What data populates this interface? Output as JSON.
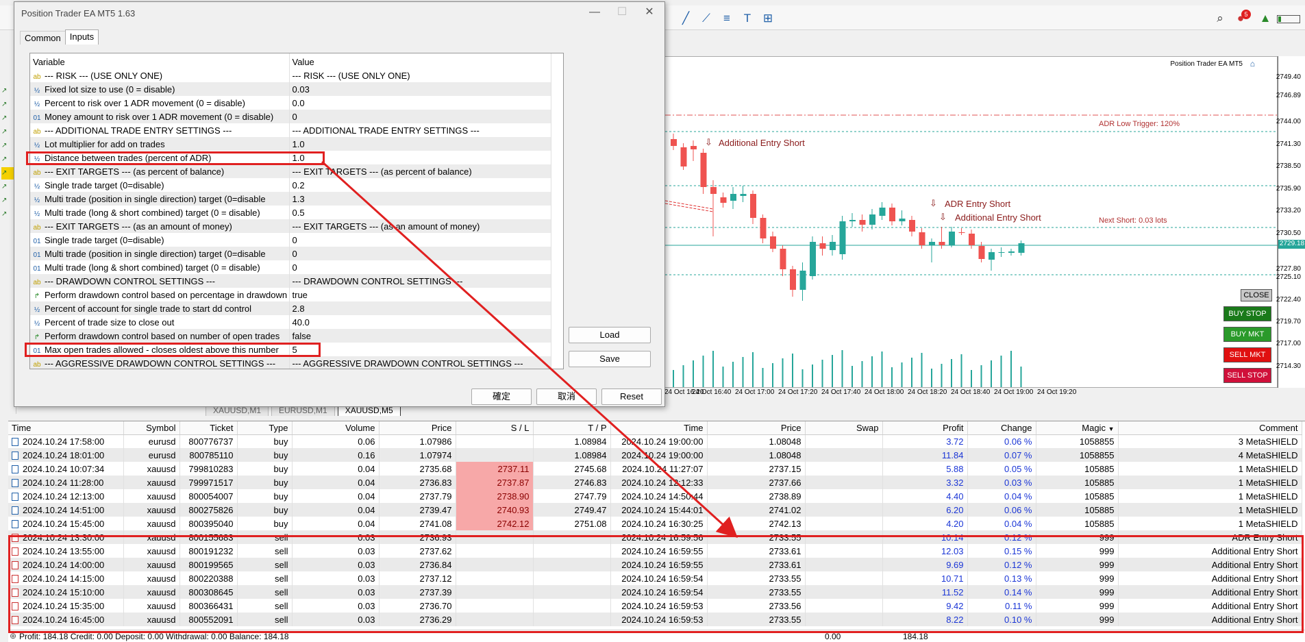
{
  "window": {
    "title": "Position Trader EA MT5 1.63"
  },
  "dialog_tabs": [
    {
      "label": "Common"
    },
    {
      "label": "Inputs"
    }
  ],
  "inputs_table": {
    "headers": {
      "variable": "Variable",
      "value": "Value"
    },
    "rows": [
      {
        "icon": "ab",
        "variable": "--- RISK --- (USE ONLY ONE)",
        "value": "--- RISK --- (USE ONLY ONE)"
      },
      {
        "icon": "½",
        "variable": "Fixed lot size to use (0 = disable)",
        "value": "0.03"
      },
      {
        "icon": "½",
        "variable": "Percent to risk over 1 ADR movement (0 = disable)",
        "value": "0.0"
      },
      {
        "icon": "01",
        "variable": "Money amount to risk over 1 ADR movement (0 = disable)",
        "value": "0"
      },
      {
        "icon": "ab",
        "variable": "--- ADDITIONAL TRADE ENTRY SETTINGS ---",
        "value": "--- ADDITIONAL TRADE ENTRY SETTINGS ---"
      },
      {
        "icon": "½",
        "variable": "Lot multiplier for add on trades",
        "value": "1.0"
      },
      {
        "icon": "½",
        "variable": "Distance between trades (percent of ADR)",
        "value": "1.0"
      },
      {
        "icon": "ab",
        "variable": "--- EXIT TARGETS --- (as percent of balance)",
        "value": "--- EXIT TARGETS --- (as percent of balance)"
      },
      {
        "icon": "½",
        "variable": "Single trade target (0=disable)",
        "value": "0.2"
      },
      {
        "icon": "½",
        "variable": "Multi trade (position in single direction) target (0=disable",
        "value": "1.3"
      },
      {
        "icon": "½",
        "variable": "Multi trade (long & short combined) target (0 = disable)",
        "value": "0.5"
      },
      {
        "icon": "ab",
        "variable": "--- EXIT TARGETS --- (as an amount of money)",
        "value": "--- EXIT TARGETS --- (as an amount of money)"
      },
      {
        "icon": "01",
        "variable": "Single trade target (0=disable)",
        "value": "0"
      },
      {
        "icon": "01",
        "variable": "Multi trade (position in single direction) target (0=disable",
        "value": "0"
      },
      {
        "icon": "01",
        "variable": "Multi trade (long & short combined) target (0 = disable)",
        "value": "0"
      },
      {
        "icon": "ab",
        "variable": "--- DRAWDOWN CONTROL SETTINGS ---",
        "value": "--- DRAWDOWN CONTROL SETTINGS ---"
      },
      {
        "icon": "↱",
        "variable": "Perform drawdown control based on percentage in drawdown",
        "value": "true"
      },
      {
        "icon": "½",
        "variable": "Percent of account for single trade to start dd control",
        "value": "2.8"
      },
      {
        "icon": "½",
        "variable": "Percent of trade size to close out",
        "value": "40.0"
      },
      {
        "icon": "↱",
        "variable": "Perform drawdown control based on number of open trades",
        "value": "false"
      },
      {
        "icon": "01",
        "variable": "Max open trades allowed - closes oldest above this number",
        "value": "5"
      },
      {
        "icon": "ab",
        "variable": "--- AGGRESSIVE DRAWDOWN CONTROL SETTINGS ---",
        "value": "--- AGGRESSIVE DRAWDOWN CONTROL SETTINGS ---"
      }
    ]
  },
  "dialog_buttons": {
    "load": "Load",
    "save": "Save",
    "ok": "確定",
    "cancel": "取消",
    "reset": "Reset"
  },
  "chart": {
    "ea_label": "Position Trader EA MT5",
    "annotations": {
      "adr_low_trigger": "ADR Low Trigger: 120%",
      "next_short": "Next Short: 0.03 lots",
      "entry1": "Additional Entry Short",
      "entry2": "ADR Entry Short",
      "entry3": "Additional Entry Short"
    },
    "price_labels": [
      "2749.40",
      "2746.89",
      "2744.00",
      "2741.30",
      "2738.50",
      "2735.90",
      "2733.20",
      "2730.50",
      "2727.80",
      "2725.10",
      "2722.40",
      "2719.70",
      "2717.00",
      "2714.30"
    ],
    "current_price": "2729.18",
    "time_labels": [
      "24 Oct 16:20",
      "24 Oct 16:40",
      "24 Oct 17:00",
      "24 Oct 17:20",
      "24 Oct 17:40",
      "24 Oct 18:00",
      "24 Oct 18:20",
      "24 Oct 18:40",
      "24 Oct 19:00",
      "24 Oct 19:20"
    ],
    "buttons": {
      "close": "CLOSE",
      "buy_stop": "BUY STOP",
      "buy_mkt": "BUY MKT",
      "sell_mkt": "SELL MKT",
      "sell_stop": "SELL STOP"
    },
    "colors": {
      "bull": "#26a69a",
      "bear": "#ef5350"
    }
  },
  "symbol_tabs": [
    {
      "label": "XAUUSD,M1"
    },
    {
      "label": "EURUSD,M1"
    },
    {
      "label": "XAUUSD,M5"
    }
  ],
  "trade_table": {
    "headers": {
      "time": "Time",
      "symbol": "Symbol",
      "ticket": "Ticket",
      "type": "Type",
      "volume": "Volume",
      "price": "Price",
      "sl": "S / L",
      "tp": "T / P",
      "time2": "Time",
      "price2": "Price",
      "swap": "Swap",
      "profit": "Profit",
      "change": "Change",
      "magic": "Magic",
      "comment": "Comment"
    },
    "rows": [
      {
        "time": "2024.10.24 17:58:00",
        "symbol": "eurusd",
        "ticket": "800776737",
        "type": "buy",
        "volume": "0.06",
        "price": "1.07986",
        "sl": "",
        "tp": "1.08984",
        "time2": "2024.10.24 19:00:00",
        "price2": "1.08048",
        "swap": "",
        "profit": "3.72",
        "change": "0.06 %",
        "magic": "1058855",
        "comment": "3 MetaSHIELD"
      },
      {
        "time": "2024.10.24 18:01:00",
        "symbol": "eurusd",
        "ticket": "800785110",
        "type": "buy",
        "volume": "0.16",
        "price": "1.07974",
        "sl": "",
        "tp": "1.08984",
        "time2": "2024.10.24 19:00:00",
        "price2": "1.08048",
        "swap": "",
        "profit": "11.84",
        "change": "0.07 %",
        "magic": "1058855",
        "comment": "4 MetaSHIELD"
      },
      {
        "time": "2024.10.24 10:07:34",
        "symbol": "xauusd",
        "ticket": "799810283",
        "type": "buy",
        "volume": "0.04",
        "price": "2735.68",
        "sl": "2737.11",
        "tp": "2745.68",
        "time2": "2024.10.24 11:27:07",
        "price2": "2737.15",
        "swap": "",
        "profit": "5.88",
        "change": "0.05 %",
        "magic": "105885",
        "comment": "1 MetaSHIELD"
      },
      {
        "time": "2024.10.24 11:28:00",
        "symbol": "xauusd",
        "ticket": "799971517",
        "type": "buy",
        "volume": "0.04",
        "price": "2736.83",
        "sl": "2737.87",
        "tp": "2746.83",
        "time2": "2024.10.24 12:12:33",
        "price2": "2737.66",
        "swap": "",
        "profit": "3.32",
        "change": "0.03 %",
        "magic": "105885",
        "comment": "1 MetaSHIELD"
      },
      {
        "time": "2024.10.24 12:13:00",
        "symbol": "xauusd",
        "ticket": "800054007",
        "type": "buy",
        "volume": "0.04",
        "price": "2737.79",
        "sl": "2738.90",
        "tp": "2747.79",
        "time2": "2024.10.24 14:50:44",
        "price2": "2738.89",
        "swap": "",
        "profit": "4.40",
        "change": "0.04 %",
        "magic": "105885",
        "comment": "1 MetaSHIELD"
      },
      {
        "time": "2024.10.24 14:51:00",
        "symbol": "xauusd",
        "ticket": "800275826",
        "type": "buy",
        "volume": "0.04",
        "price": "2739.47",
        "sl": "2740.93",
        "tp": "2749.47",
        "time2": "2024.10.24 15:44:01",
        "price2": "2741.02",
        "swap": "",
        "profit": "6.20",
        "change": "0.06 %",
        "magic": "105885",
        "comment": "1 MetaSHIELD"
      },
      {
        "time": "2024.10.24 15:45:00",
        "symbol": "xauusd",
        "ticket": "800395040",
        "type": "buy",
        "volume": "0.04",
        "price": "2741.08",
        "sl": "2742.12",
        "tp": "2751.08",
        "time2": "2024.10.24 16:30:25",
        "price2": "2742.13",
        "swap": "",
        "profit": "4.20",
        "change": "0.04 %",
        "magic": "105885",
        "comment": "1 MetaSHIELD"
      },
      {
        "time": "2024.10.24 13:30:00",
        "symbol": "xauusd",
        "ticket": "800155683",
        "type": "sell",
        "volume": "0.03",
        "price": "2736.93",
        "sl": "",
        "tp": "",
        "time2": "2024.10.24 16:59:56",
        "price2": "2733.55",
        "swap": "",
        "profit": "10.14",
        "change": "0.12 %",
        "magic": "999",
        "comment": "ADR Entry Short"
      },
      {
        "time": "2024.10.24 13:55:00",
        "symbol": "xauusd",
        "ticket": "800191232",
        "type": "sell",
        "volume": "0.03",
        "price": "2737.62",
        "sl": "",
        "tp": "",
        "time2": "2024.10.24 16:59:55",
        "price2": "2733.61",
        "swap": "",
        "profit": "12.03",
        "change": "0.15 %",
        "magic": "999",
        "comment": "Additional Entry Short"
      },
      {
        "time": "2024.10.24 14:00:00",
        "symbol": "xauusd",
        "ticket": "800199565",
        "type": "sell",
        "volume": "0.03",
        "price": "2736.84",
        "sl": "",
        "tp": "",
        "time2": "2024.10.24 16:59:55",
        "price2": "2733.61",
        "swap": "",
        "profit": "9.69",
        "change": "0.12 %",
        "magic": "999",
        "comment": "Additional Entry Short"
      },
      {
        "time": "2024.10.24 14:15:00",
        "symbol": "xauusd",
        "ticket": "800220388",
        "type": "sell",
        "volume": "0.03",
        "price": "2737.12",
        "sl": "",
        "tp": "",
        "time2": "2024.10.24 16:59:54",
        "price2": "2733.55",
        "swap": "",
        "profit": "10.71",
        "change": "0.13 %",
        "magic": "999",
        "comment": "Additional Entry Short"
      },
      {
        "time": "2024.10.24 15:10:00",
        "symbol": "xauusd",
        "ticket": "800308645",
        "type": "sell",
        "volume": "0.03",
        "price": "2737.39",
        "sl": "",
        "tp": "",
        "time2": "2024.10.24 16:59:54",
        "price2": "2733.55",
        "swap": "",
        "profit": "11.52",
        "change": "0.14 %",
        "magic": "999",
        "comment": "Additional Entry Short"
      },
      {
        "time": "2024.10.24 15:35:00",
        "symbol": "xauusd",
        "ticket": "800366431",
        "type": "sell",
        "volume": "0.03",
        "price": "2736.70",
        "sl": "",
        "tp": "",
        "time2": "2024.10.24 16:59:53",
        "price2": "2733.56",
        "swap": "",
        "profit": "9.42",
        "change": "0.11 %",
        "magic": "999",
        "comment": "Additional Entry Short"
      },
      {
        "time": "2024.10.24 16:45:00",
        "symbol": "xauusd",
        "ticket": "800552091",
        "type": "sell",
        "volume": "0.03",
        "price": "2736.29",
        "sl": "",
        "tp": "",
        "time2": "2024.10.24 16:59:53",
        "price2": "2733.55",
        "swap": "",
        "profit": "8.22",
        "change": "0.10 %",
        "magic": "999",
        "comment": "Additional Entry Short"
      }
    ]
  },
  "status_bar": {
    "summary": "Profit: 184.18  Credit: 0.00  Deposit: 0.00  Withdrawal: 0.00  Balance: 184.18",
    "swap_total": "0.00",
    "profit_total": "184.18"
  },
  "toolbar": {
    "notification_count": "5"
  }
}
